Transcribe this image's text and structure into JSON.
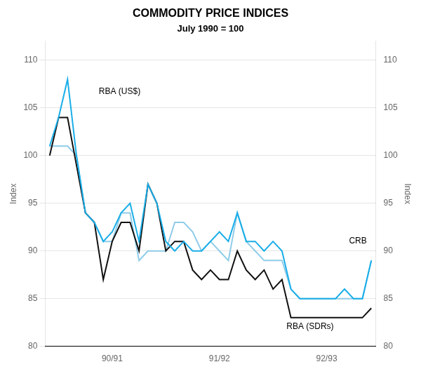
{
  "chart_data": {
    "type": "line",
    "title": "COMMODITY PRICE INDICES",
    "subtitle": "July 1990 = 100",
    "ylabel": "Index",
    "y2label": "Index",
    "categories": [
      null,
      null,
      null,
      null,
      null,
      null,
      null,
      "90/91",
      null,
      null,
      null,
      null,
      null,
      null,
      null,
      null,
      null,
      null,
      null,
      "91/92",
      null,
      null,
      null,
      null,
      null,
      null,
      null,
      null,
      null,
      null,
      null,
      "92/93",
      null,
      null,
      null,
      null,
      null
    ],
    "ylim": [
      80,
      112
    ],
    "yticks": [
      80,
      85,
      90,
      95,
      100,
      105,
      110
    ],
    "y2lim": [
      80,
      112
    ],
    "y2ticks": [
      80,
      85,
      90,
      95,
      100,
      105,
      110
    ],
    "grid": true,
    "annotations": [
      {
        "text": "RBA (US$)",
        "x": 5.5,
        "y": 106.5
      },
      {
        "text": "CRB",
        "x": 33.5,
        "y": 90.8
      },
      {
        "text": "RBA (SDRs)",
        "x": 26.5,
        "y": 81.8
      }
    ],
    "series": [
      {
        "name": "RBA (US$)",
        "color": "#1aaee8",
        "values": [
          101,
          104,
          108,
          100,
          94,
          93,
          91,
          92,
          94,
          95,
          91,
          97,
          95,
          91,
          90,
          91,
          90,
          90,
          91,
          92,
          91,
          94,
          91,
          91,
          90,
          91,
          90,
          86,
          85,
          85,
          85,
          85,
          85,
          86,
          85,
          85,
          89
        ]
      },
      {
        "name": "RBA (SDRs)",
        "color": "#111111",
        "values": [
          100,
          104,
          104,
          99,
          94,
          93,
          87,
          91,
          93,
          93,
          90,
          97,
          95,
          90,
          91,
          91,
          88,
          87,
          88,
          87,
          87,
          90,
          88,
          87,
          88,
          86,
          87,
          83,
          83,
          83,
          83,
          83,
          83,
          83,
          83,
          83,
          84
        ]
      },
      {
        "name": "CRB",
        "color": "#8fcce8",
        "values": [
          101,
          101,
          101,
          100,
          94,
          93,
          91,
          91,
          94,
          94,
          89,
          90,
          90,
          90,
          93,
          93,
          92,
          90,
          91,
          90,
          89,
          94,
          91,
          90,
          89,
          89,
          89,
          86,
          85,
          85,
          85,
          85,
          85,
          85,
          85,
          85,
          89
        ]
      }
    ]
  }
}
